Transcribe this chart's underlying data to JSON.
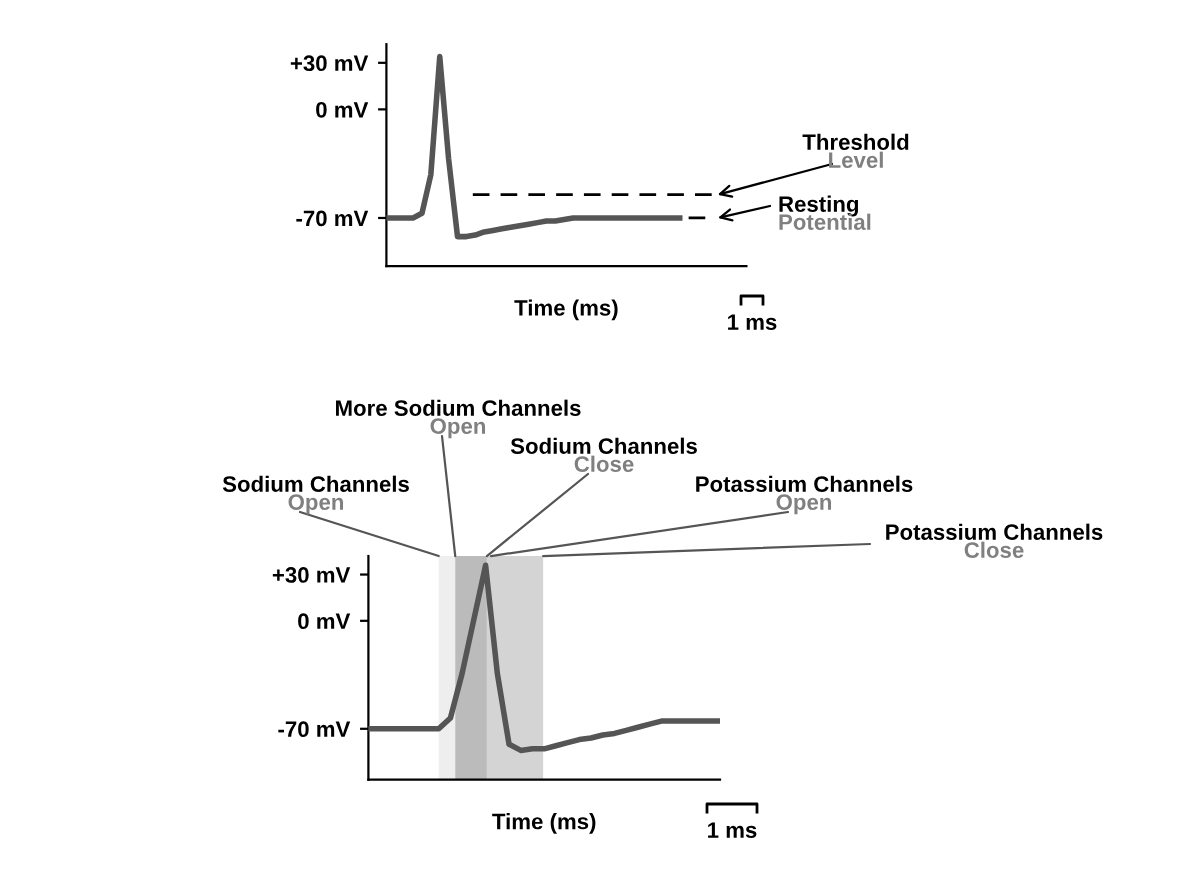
{
  "chart_data": [
    {
      "type": "line",
      "xlabel": "Time (ms)",
      "tick_labels": "y",
      "grid": false,
      "legend": false,
      "categories": [
        null,
        null,
        null,
        null,
        null,
        null,
        null,
        null,
        null,
        null,
        null,
        null,
        null,
        null,
        null,
        null,
        null,
        null,
        null,
        null,
        null,
        null,
        null,
        null,
        null,
        null,
        null,
        null,
        null,
        null,
        null,
        null,
        null,
        null,
        null,
        null,
        null,
        null,
        null,
        null,
        null
      ],
      "ylim": [
        -101,
        42
      ],
      "yticks": [
        {
          "value": 30,
          "label": "+30 mV"
        },
        {
          "value": 0,
          "label": "0 mV"
        },
        {
          "value": -70,
          "label": "-70 mV"
        }
      ],
      "series": [
        {
          "color": "#555555",
          "values": [
            -70,
            -70,
            -70,
            -70,
            -67,
            -42,
            34,
            -32,
            -82,
            -82,
            -81,
            -79,
            -78,
            -77,
            -76,
            -75,
            -74,
            -73,
            -72,
            -72,
            -71,
            -70,
            -70,
            -70,
            -70,
            -70,
            -70,
            -70,
            -70,
            -70,
            -70,
            -70,
            -70,
            -70,
            null,
            null,
            null,
            null,
            null,
            null,
            null
          ]
        },
        {
          "color": "#000000",
          "line_style": "dashed",
          "values": [
            null,
            null,
            null,
            null,
            null,
            null,
            null,
            null,
            null,
            null,
            null,
            null,
            null,
            null,
            null,
            null,
            null,
            null,
            null,
            null,
            null,
            null,
            null,
            null,
            null,
            null,
            null,
            null,
            null,
            null,
            null,
            null,
            null,
            null,
            -70,
            -70,
            -70,
            -70,
            null,
            null,
            null
          ]
        }
      ],
      "ref_lines": [
        {
          "axis": "y",
          "value": -55,
          "label": "Threshold\nLevel",
          "color": "#000000",
          "line_style": "dashed"
        }
      ],
      "annotations": [
        "Resting\nPotential",
        "1 ms"
      ]
    },
    {
      "type": "line",
      "xlabel": "Time (ms)",
      "tick_labels": "y",
      "grid": false,
      "legend": false,
      "categories": [
        null,
        null,
        null,
        null,
        null,
        null,
        null,
        null,
        null,
        null,
        null,
        null,
        null,
        null,
        null,
        null,
        null,
        null,
        null,
        null,
        null,
        null,
        null,
        null,
        null,
        null,
        null,
        null,
        null,
        null,
        null
      ],
      "ylim": [
        -103,
        42
      ],
      "yticks": [
        {
          "value": 30,
          "label": "+30 mV"
        },
        {
          "value": 0,
          "label": "0 mV"
        },
        {
          "value": -70,
          "label": "-70 mV"
        }
      ],
      "series": [
        {
          "color": "#555555",
          "values": [
            -70,
            -70,
            -70,
            -70,
            -70,
            -70,
            -70,
            -63,
            -34,
            1,
            36,
            -34,
            -80,
            -84,
            -83,
            -83,
            -81,
            -79,
            -77,
            -76,
            -74,
            -73,
            -71,
            -69,
            -67,
            -65,
            -65,
            -65,
            -65,
            -65,
            -65
          ]
        }
      ],
      "annotations": [
        "Sodium Channels\nOpen",
        "More Sodium Channels\nOpen",
        "Sodium Channels\nClose",
        "Potassium Channels\nOpen",
        "Potassium Channels\nClose",
        "1 ms"
      ]
    }
  ]
}
